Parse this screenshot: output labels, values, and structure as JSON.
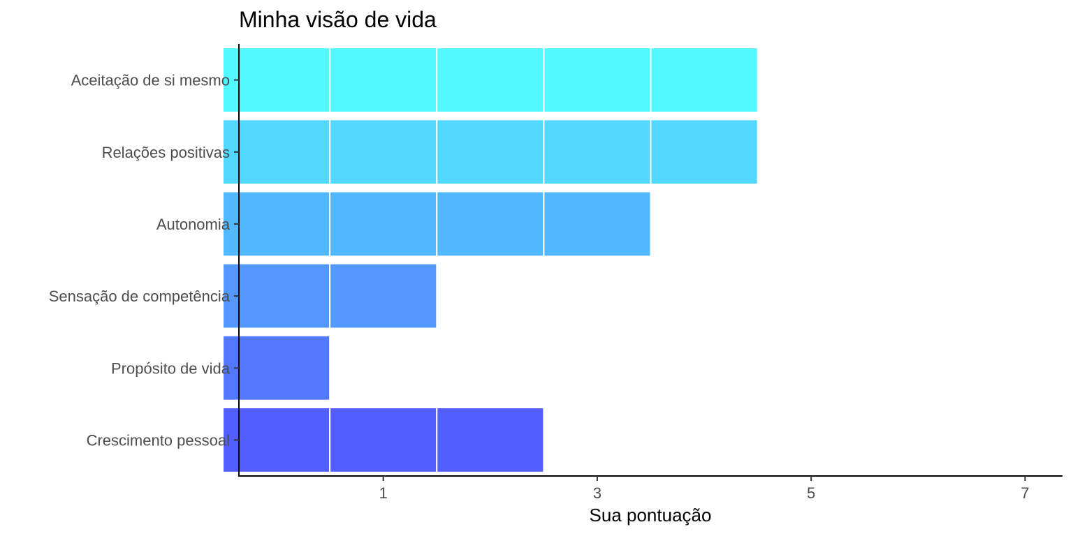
{
  "chart_data": {
    "type": "bar",
    "orientation": "horizontal",
    "title": "Minha visão de vida",
    "xlabel": "Sua pontuação",
    "ylabel": "",
    "categories": [
      "Aceitação de si mesmo",
      "Relações positivas",
      "Autonomia",
      "Sensação de competência",
      "Propósito de vida",
      "Crescimento pessoal"
    ],
    "values": [
      5,
      5,
      4,
      2,
      1,
      3
    ],
    "colors": [
      "#52f8ff",
      "#52d8ff",
      "#52b8ff",
      "#5298ff",
      "#5278ff",
      "#525eff"
    ],
    "x_ticks": [
      1,
      3,
      5,
      7
    ],
    "xlim": [
      -0.35,
      7.35
    ],
    "segment_unit": 1,
    "grid": false,
    "legend": "none"
  }
}
